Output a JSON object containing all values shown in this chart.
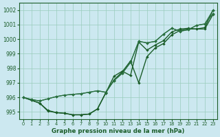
{
  "background_color": "#cce8f0",
  "grid_color": "#99ccbb",
  "line_color": "#1a5c28",
  "xlabel": "Graphe pression niveau de la mer (hPa)",
  "xlim": [
    -0.5,
    23.5
  ],
  "ylim": [
    994.5,
    1002.5
  ],
  "yticks": [
    995,
    996,
    997,
    998,
    999,
    1000,
    1001,
    1002
  ],
  "xticks": [
    0,
    1,
    2,
    3,
    4,
    5,
    6,
    7,
    8,
    9,
    10,
    11,
    12,
    13,
    14,
    15,
    16,
    17,
    18,
    19,
    20,
    21,
    22,
    23
  ],
  "series": [
    {
      "y": [
        996.0,
        995.8,
        995.6,
        995.1,
        994.95,
        994.9,
        994.8,
        994.8,
        994.85,
        995.2,
        996.3,
        997.45,
        997.8,
        997.5,
        999.8,
        999.25,
        999.6,
        999.9,
        1000.5,
        1000.7,
        1000.75,
        1000.7,
        1000.7,
        1001.7
      ],
      "color": "#1a5c28",
      "lw": 1.0
    },
    {
      "y": [
        996.0,
        995.8,
        995.6,
        995.05,
        994.95,
        994.9,
        994.8,
        994.8,
        994.85,
        995.2,
        996.3,
        997.2,
        997.75,
        998.5,
        997.0,
        998.8,
        999.4,
        999.7,
        1000.3,
        1000.6,
        1000.7,
        1000.7,
        1000.8,
        1002.0
      ],
      "color": "#1a5c28",
      "lw": 1.0
    },
    {
      "y": [
        996.0,
        995.85,
        995.75,
        995.9,
        996.05,
        996.15,
        996.2,
        996.25,
        996.35,
        996.45,
        996.35,
        997.15,
        997.65,
        998.4,
        999.85,
        999.75,
        999.85,
        1000.35,
        1000.75,
        1000.55,
        1000.65,
        1000.95,
        1001.05,
        1001.75
      ],
      "color": "#2a7040",
      "lw": 0.9
    },
    {
      "y": [
        996.0,
        995.85,
        995.75,
        995.9,
        996.05,
        996.15,
        996.2,
        996.25,
        996.35,
        996.45,
        996.35,
        997.15,
        997.65,
        998.4,
        999.85,
        999.75,
        999.85,
        1000.35,
        1000.75,
        1000.55,
        1000.65,
        1000.95,
        1001.05,
        1002.0
      ],
      "color": "#2a7040",
      "lw": 0.9
    }
  ]
}
